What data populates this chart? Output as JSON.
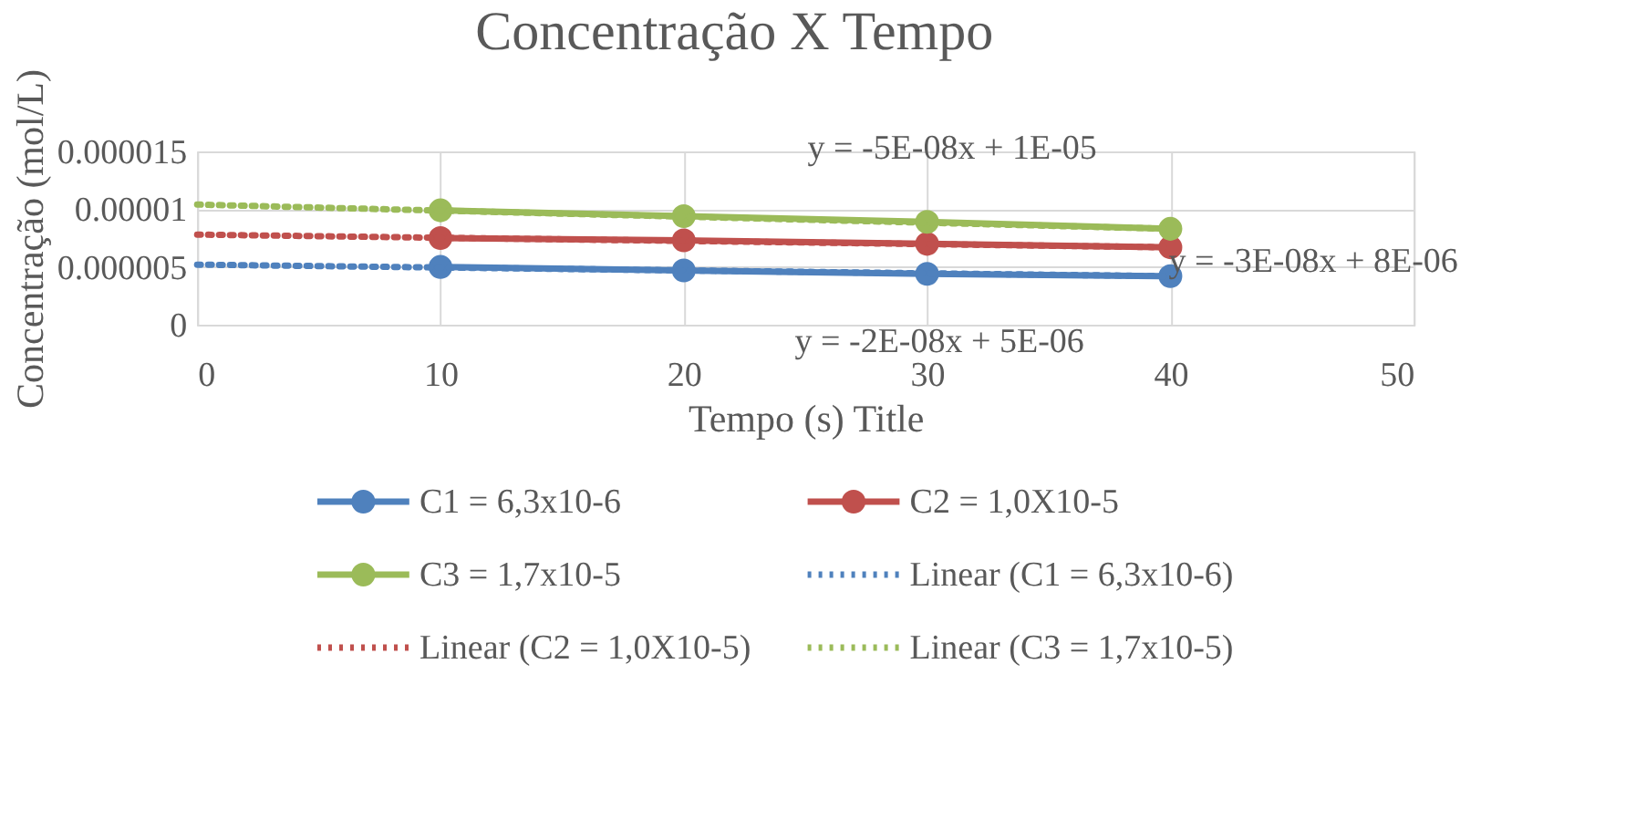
{
  "chart_data": {
    "type": "line",
    "title": "Concentração X Tempo",
    "xlabel": "Tempo (s) Title",
    "ylabel": "Concentração (mol/L)",
    "xlim": [
      0,
      50
    ],
    "xticks": [
      0,
      10,
      20,
      30,
      40,
      50
    ],
    "ylim": [
      0,
      1.5e-05
    ],
    "yticks": [
      {
        "value": 0,
        "label": "0"
      },
      {
        "value": 5e-06,
        "label": "0.000005"
      },
      {
        "value": 1e-05,
        "label": "0.00001"
      },
      {
        "value": 1.5e-05,
        "label": "0.000015"
      }
    ],
    "grid": true,
    "legend": "bottom",
    "series": [
      {
        "name": "C1 = 6,3x10-6",
        "color": "#4f81bd",
        "marker": "circle",
        "line_style": "solid",
        "x": [
          10,
          20,
          30,
          40
        ],
        "values": [
          5e-06,
          4.7e-06,
          4.4e-06,
          4.2e-06
        ]
      },
      {
        "name": "C2 = 1,0X10-5",
        "color": "#c0504d",
        "marker": "circle",
        "line_style": "solid",
        "x": [
          10,
          20,
          30,
          40
        ],
        "values": [
          7.5e-06,
          7.3e-06,
          7e-06,
          6.7e-06
        ]
      },
      {
        "name": "C3 = 1,7x10-5",
        "color": "#9bbb59",
        "marker": "circle",
        "line_style": "solid",
        "x": [
          10,
          20,
          30,
          40
        ],
        "values": [
          9.9e-06,
          9.4e-06,
          8.9e-06,
          8.3e-06
        ]
      },
      {
        "name": "Linear (C1 = 6,3x10-6)",
        "color": "#4f81bd",
        "marker": "none",
        "line_style": "dotted",
        "x": [
          0,
          40
        ],
        "values": [
          5.2e-06,
          4.2e-06
        ]
      },
      {
        "name": "Linear (C2 = 1,0X10-5)",
        "color": "#c0504d",
        "marker": "none",
        "line_style": "dotted",
        "x": [
          0,
          40
        ],
        "values": [
          7.8e-06,
          6.7e-06
        ]
      },
      {
        "name": "Linear (C3 = 1,7x10-5)",
        "color": "#9bbb59",
        "marker": "none",
        "line_style": "dotted",
        "x": [
          0,
          40
        ],
        "values": [
          1.04e-05,
          8.3e-06
        ]
      }
    ],
    "annotations": [
      "y = -5E-08x + 1E-05",
      "y = -3E-08x + 8E-06",
      "y = -2E-08x + 5E-06"
    ]
  }
}
